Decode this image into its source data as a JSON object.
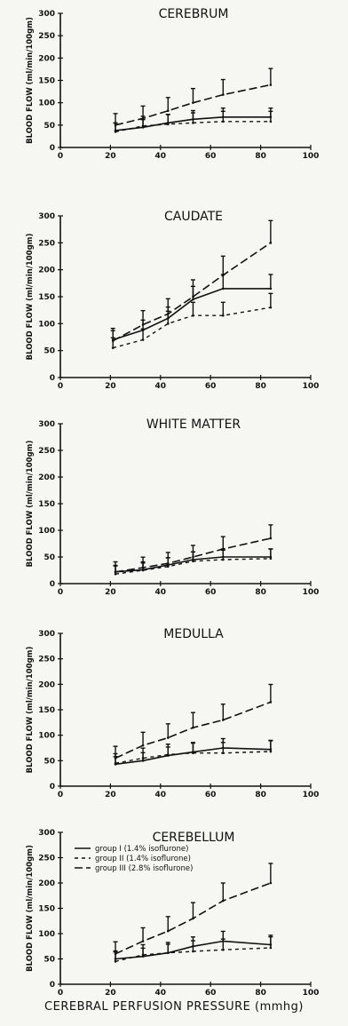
{
  "figure": {
    "xlabel": "CEREBRAL PERFUSION PRESSURE (mmhg)"
  },
  "chart_data": [
    {
      "type": "line",
      "title": "CEREBRUM",
      "ylabel": "BLOOD FLOW (ml/min/100gm)",
      "xlim": [
        0,
        100
      ],
      "ylim": [
        0,
        300
      ],
      "xticks": [
        0,
        20,
        40,
        60,
        80,
        100
      ],
      "yticks": [
        0,
        50,
        100,
        150,
        200,
        250,
        300
      ],
      "grid": false,
      "series": [
        {
          "name": "group I (1.4% isoflurane)",
          "x": [
            22,
            33,
            43,
            53,
            65,
            84
          ],
          "y": [
            38,
            45,
            55,
            63,
            68,
            68
          ]
        },
        {
          "name": "group II (1.4% isoflurane)",
          "x": [
            22,
            33,
            43,
            53,
            65,
            84
          ],
          "y": [
            35,
            48,
            52,
            55,
            58,
            58
          ]
        },
        {
          "name": "group III (2.8% isoflurane)",
          "x": [
            22,
            33,
            43,
            53,
            65,
            84
          ],
          "y": [
            50,
            65,
            82,
            100,
            118,
            140
          ]
        }
      ]
    },
    {
      "type": "line",
      "title": "CAUDATE",
      "ylabel": "BLOOD FLOW (ml/min/100gm)",
      "xlim": [
        0,
        100
      ],
      "ylim": [
        0,
        300
      ],
      "xticks": [
        0,
        20,
        40,
        60,
        80,
        100
      ],
      "yticks": [
        0,
        50,
        100,
        150,
        200,
        250,
        300
      ],
      "grid": false,
      "series": [
        {
          "name": "group I (1.4% isoflurane)",
          "x": [
            21,
            33,
            43,
            53,
            65,
            84
          ],
          "y": [
            70,
            88,
            110,
            145,
            165,
            165
          ]
        },
        {
          "name": "group II (1.4% isoflurane)",
          "x": [
            21,
            33,
            43,
            53,
            65,
            84
          ],
          "y": [
            55,
            70,
            100,
            115,
            115,
            130
          ]
        },
        {
          "name": "group III (2.8% isoflurane)",
          "x": [
            21,
            33,
            43,
            53,
            65,
            84
          ],
          "y": [
            68,
            98,
            118,
            150,
            190,
            250
          ]
        }
      ]
    },
    {
      "type": "line",
      "title": "WHITE MATTER",
      "ylabel": "BLOOD FLOW (ml/min/100gm)",
      "xlim": [
        0,
        100
      ],
      "ylim": [
        0,
        300
      ],
      "xticks": [
        0,
        20,
        40,
        60,
        80,
        100
      ],
      "yticks": [
        0,
        50,
        100,
        150,
        200,
        250,
        300
      ],
      "grid": false,
      "series": [
        {
          "name": "group I (1.4% isoflurane)",
          "x": [
            22,
            33,
            43,
            53,
            65,
            84
          ],
          "y": [
            22,
            26,
            35,
            45,
            50,
            50
          ]
        },
        {
          "name": "group II (1.4% isoflurane)",
          "x": [
            22,
            33,
            43,
            53,
            65,
            84
          ],
          "y": [
            18,
            25,
            32,
            42,
            45,
            47
          ]
        },
        {
          "name": "group III (2.8% isoflurane)",
          "x": [
            22,
            33,
            43,
            53,
            65,
            84
          ],
          "y": [
            22,
            30,
            38,
            50,
            65,
            85
          ]
        }
      ]
    },
    {
      "type": "line",
      "title": "MEDULLA",
      "ylabel": "BLOOD FLOW (ml/min/100gm)",
      "xlim": [
        0,
        100
      ],
      "ylim": [
        0,
        300
      ],
      "xticks": [
        0,
        20,
        40,
        60,
        80,
        100
      ],
      "yticks": [
        0,
        50,
        100,
        150,
        200,
        250,
        300
      ],
      "grid": false,
      "series": [
        {
          "name": "group I (1.4% isoflurane)",
          "x": [
            22,
            33,
            43,
            53,
            65,
            84
          ],
          "y": [
            43,
            50,
            60,
            67,
            75,
            72
          ]
        },
        {
          "name": "group II (1.4% isoflurane)",
          "x": [
            22,
            33,
            43,
            53,
            65,
            84
          ],
          "y": [
            45,
            55,
            62,
            65,
            65,
            68
          ]
        },
        {
          "name": "group III (2.8% isoflurane)",
          "x": [
            22,
            33,
            43,
            53,
            65,
            84
          ],
          "y": [
            55,
            80,
            95,
            115,
            130,
            165
          ]
        }
      ]
    },
    {
      "type": "line",
      "title": "CEREBELLUM",
      "ylabel": "BLOOD FLOW (ml/min/100gm)",
      "xlabel": "CEREBRAL PERFUSION PRESSURE (mmhg)",
      "xlim": [
        0,
        100
      ],
      "ylim": [
        0,
        300
      ],
      "xticks": [
        0,
        20,
        40,
        60,
        80,
        100
      ],
      "yticks": [
        0,
        50,
        100,
        150,
        200,
        250,
        300
      ],
      "grid": false,
      "legend": "top-left",
      "series": [
        {
          "name": "group I (1.4% isoflurane)",
          "x": [
            22,
            33,
            43,
            53,
            65,
            84
          ],
          "y": [
            50,
            55,
            62,
            75,
            85,
            78
          ]
        },
        {
          "name": "group II (1.4% isoflurane)",
          "x": [
            22,
            33,
            43,
            53,
            65,
            84
          ],
          "y": [
            45,
            58,
            62,
            65,
            68,
            72
          ]
        },
        {
          "name": "group III (2.8% isoflurane)",
          "x": [
            22,
            33,
            43,
            53,
            65,
            84
          ],
          "y": [
            60,
            85,
            105,
            130,
            165,
            200
          ]
        }
      ],
      "legend_entries": [
        "group I (1.4% isoflurone)",
        "group II (1.4% isoflurone)",
        "group III (2.8% isoflurone)"
      ]
    }
  ]
}
